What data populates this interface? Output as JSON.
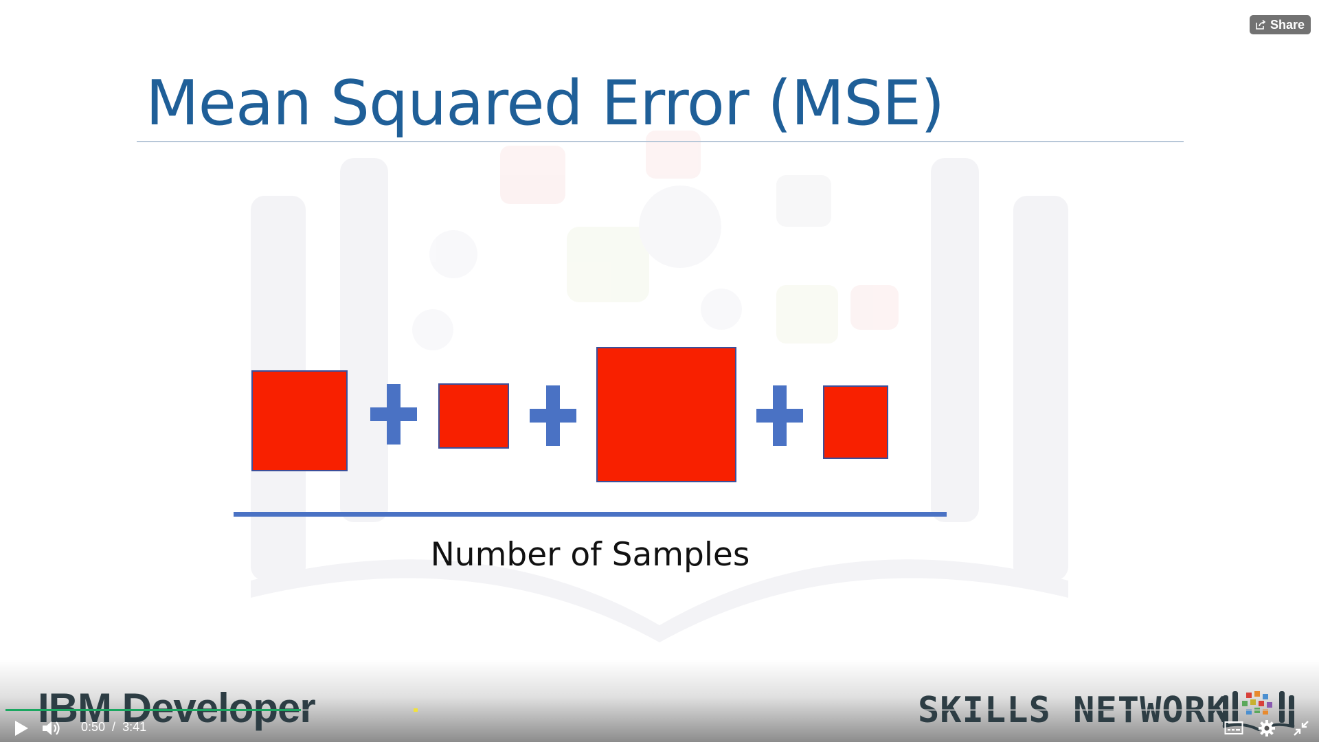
{
  "slide": {
    "title": "Mean Squared Error (MSE)",
    "denominator": "Number of Samples"
  },
  "overlay": {
    "share_label": "Share"
  },
  "branding": {
    "left": "IBM Developer",
    "right": "SKILLS NETWORK"
  },
  "player": {
    "current_time": "0:50",
    "separator": "/",
    "duration": "3:41",
    "progress_fraction": 0.226
  },
  "colors": {
    "title": "#1f5f98",
    "square_fill": "#f82000",
    "plus_and_bar": "#4a72c4",
    "progress_played": "#1aa760"
  },
  "icons": {
    "play": "play-icon",
    "volume": "volume-icon",
    "captions": "captions-icon",
    "settings": "gear-icon",
    "exit_fullscreen": "exit-fullscreen-icon",
    "share": "share-icon"
  }
}
